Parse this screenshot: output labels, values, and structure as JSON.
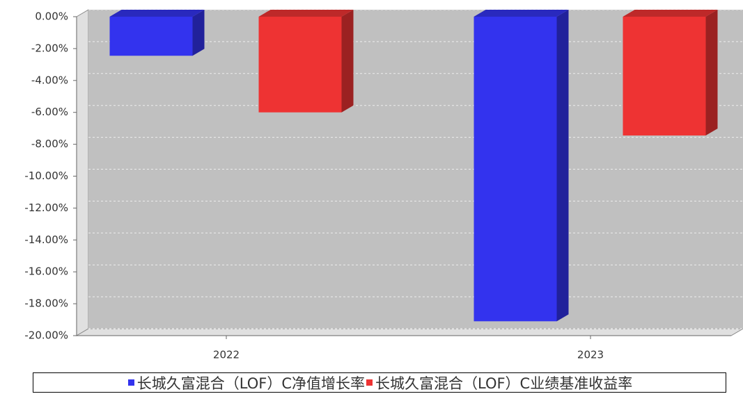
{
  "chart_data": {
    "type": "bar3d",
    "categories": [
      "2022",
      "2023"
    ],
    "series": [
      {
        "name": "长城久富混合（LOF）C净值增长率",
        "color": "#3333ee",
        "values": [
          -2.45,
          -19.1
        ]
      },
      {
        "name": "长城久富混合（LOF）C业绩基准收益率",
        "color": "#ee3333",
        "values": [
          -6.0,
          -7.45
        ]
      }
    ],
    "ylim": [
      -20,
      0
    ],
    "yticks": [
      {
        "value": 0,
        "label": "0.00%"
      },
      {
        "value": -2,
        "label": "-2.00%"
      },
      {
        "value": -4,
        "label": "-4.00%"
      },
      {
        "value": -6,
        "label": "-6.00%"
      },
      {
        "value": -8,
        "label": "-8.00%"
      },
      {
        "value": -10,
        "label": "-10.00%"
      },
      {
        "value": -12,
        "label": "-12.00%"
      },
      {
        "value": -14,
        "label": "-14.00%"
      },
      {
        "value": -16,
        "label": "-16.00%"
      },
      {
        "value": -18,
        "label": "-18.00%"
      },
      {
        "value": -20,
        "label": "-20.00%"
      }
    ],
    "grid": true
  }
}
